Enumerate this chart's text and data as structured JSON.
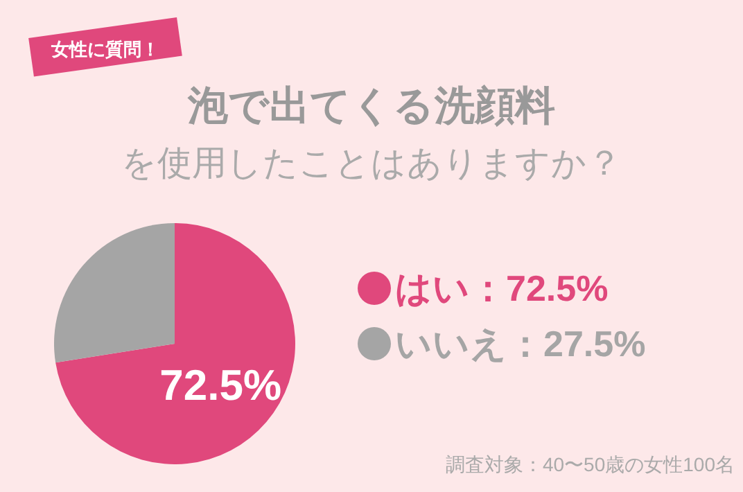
{
  "chart_data": {
    "type": "pie",
    "title": "泡で出てくる洗顔料",
    "subtitle": "を使用したことはありますか？",
    "categories": [
      "はい",
      "いいえ"
    ],
    "values": [
      72.5,
      27.5
    ],
    "colors": [
      "#e0487c",
      "#a5a5a5"
    ],
    "value_labels": [
      "72.5%",
      "27.5%"
    ],
    "annotations": [
      "女性に質問！",
      "調査対象：40〜50歳の女性100名",
      {
        "text": "72.5%",
        "x": "はい"
      }
    ],
    "legend": "right"
  }
}
